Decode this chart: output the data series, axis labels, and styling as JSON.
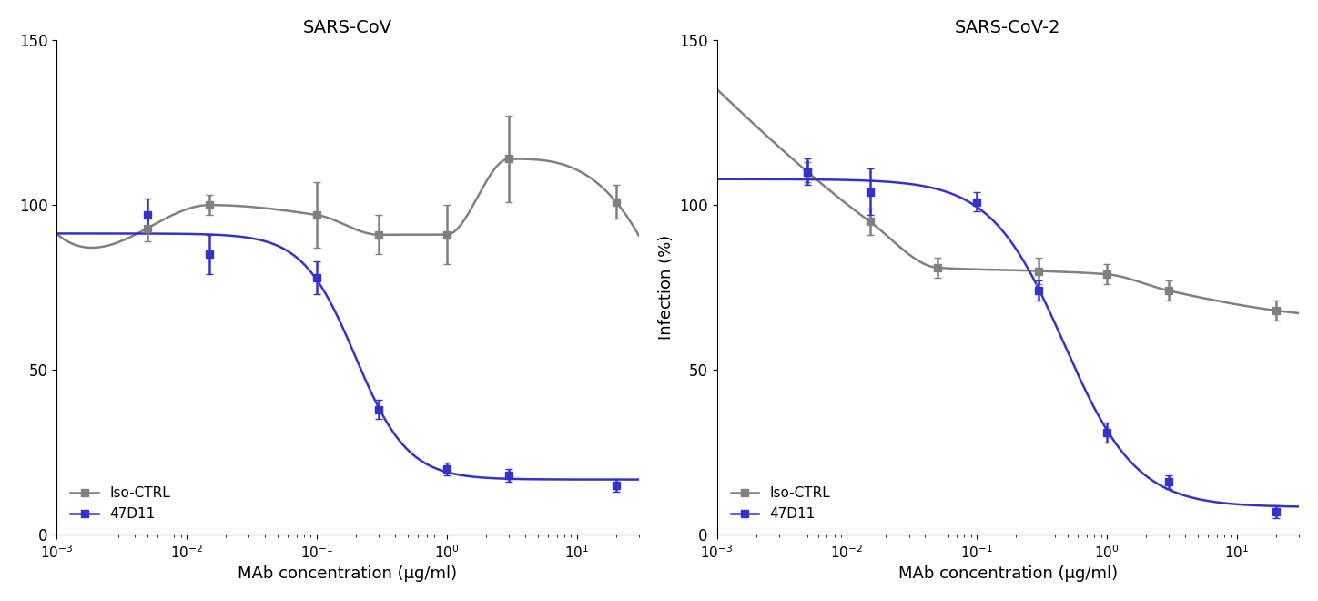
{
  "left_title": "SARS-CoV",
  "right_title": "SARS-CoV-2",
  "xlabel": "MAb concentration (μg/ml)",
  "ylabel": "Infection (%)",
  "ylim": [
    0,
    150
  ],
  "yticks": [
    0,
    50,
    100,
    150
  ],
  "xlim": [
    0.001,
    30
  ],
  "cov1_ctrl_x": [
    0.005,
    0.015,
    0.1,
    0.3,
    1.0,
    3.0,
    20.0
  ],
  "cov1_ctrl_y": [
    93,
    100,
    97,
    91,
    91,
    114,
    101
  ],
  "cov1_ctrl_yerr": [
    4,
    3,
    10,
    6,
    9,
    13,
    5
  ],
  "cov1_47d11_x": [
    0.005,
    0.015,
    0.1,
    0.3,
    1.0,
    3.0,
    20.0
  ],
  "cov1_47d11_y": [
    97,
    85,
    78,
    38,
    20,
    18,
    15
  ],
  "cov1_47d11_yerr": [
    5,
    6,
    5,
    3,
    2,
    2,
    2
  ],
  "cov2_ctrl_x": [
    0.005,
    0.015,
    0.05,
    0.3,
    1.0,
    3.0,
    20.0
  ],
  "cov2_ctrl_y": [
    110,
    95,
    81,
    80,
    79,
    74,
    68
  ],
  "cov2_ctrl_yerr": [
    3,
    4,
    3,
    4,
    3,
    3,
    3
  ],
  "cov2_47d11_x": [
    0.005,
    0.015,
    0.1,
    0.3,
    1.0,
    3.0,
    20.0
  ],
  "cov2_47d11_y": [
    110,
    104,
    101,
    74,
    31,
    16,
    7
  ],
  "cov2_47d11_yerr": [
    4,
    7,
    3,
    3,
    3,
    2,
    2
  ],
  "color_ctrl": "#808080",
  "color_47d11": "#3333cc",
  "marker_size": 6,
  "linewidth": 1.8,
  "capsize": 3
}
